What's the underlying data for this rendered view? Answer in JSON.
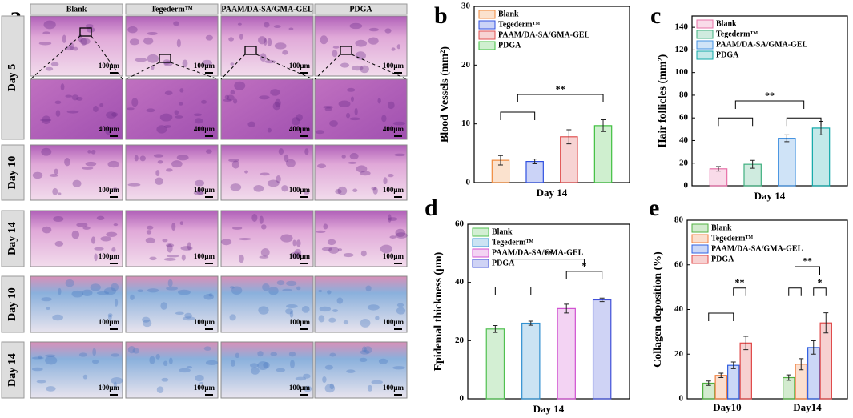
{
  "panel_a": {
    "panel": "a",
    "columns": [
      "Blank",
      "Tegederm™",
      "PAAM/DA-SA/GMA-GEL",
      "PDGA"
    ],
    "rows": [
      {
        "label": "Day 5",
        "scale": "100μm"
      },
      {
        "scale": "400μm"
      },
      {
        "label": "Day 10",
        "scale": "100μm"
      },
      {
        "label": "Day 14",
        "scale": "100μm"
      },
      {
        "label": "Day 10",
        "scale": "100μm"
      },
      {
        "label": "Day 14",
        "scale": "100μm"
      }
    ]
  },
  "chart_data": [
    {
      "type": "bar",
      "panel": "b",
      "y_label": "Blood Vessels (mm²)",
      "x_label": "Day 14",
      "categories": [
        null
      ],
      "ylim": [
        0,
        30
      ],
      "yticks": [
        0,
        10,
        20,
        30
      ],
      "legend": "top-left",
      "annotations": [
        "**"
      ],
      "series": [
        {
          "name": "Blank",
          "color": "#f08a3c",
          "values": [
            3.8
          ],
          "errors": [
            0.8
          ]
        },
        {
          "name": "Tegederm™",
          "color": "#3050e0",
          "values": [
            3.6
          ],
          "errors": [
            0.4
          ]
        },
        {
          "name": "PAAM/DA-SA/GMA-GEL",
          "color": "#e05050",
          "values": [
            7.8
          ],
          "errors": [
            1.2
          ]
        },
        {
          "name": "PDGA",
          "color": "#40c040",
          "values": [
            9.7
          ],
          "errors": [
            1.0
          ]
        }
      ]
    },
    {
      "type": "bar",
      "panel": "c",
      "y_label": "Hair follicles (mm²)",
      "x_label": "Day 14",
      "categories": [
        null
      ],
      "ylim": [
        0,
        150
      ],
      "yticks": [
        0,
        20,
        40,
        60,
        80,
        100,
        120,
        140
      ],
      "legend": "top-left",
      "annotations": [
        "**"
      ],
      "series": [
        {
          "name": "Blank",
          "color": "#e870a8",
          "values": [
            15
          ],
          "errors": [
            2
          ]
        },
        {
          "name": "Tegederm™",
          "color": "#40b080",
          "values": [
            19
          ],
          "errors": [
            3.5
          ]
        },
        {
          "name": "PAAM/DA-SA/GMA-GEL",
          "color": "#4090e0",
          "values": [
            42
          ],
          "errors": [
            3
          ]
        },
        {
          "name": "PDGA",
          "color": "#10a8a8",
          "values": [
            51
          ],
          "errors": [
            6
          ]
        }
      ]
    },
    {
      "type": "bar",
      "panel": "d",
      "y_label": "Epidemal thickness (μm)",
      "x_label": "Day 14",
      "categories": [
        null
      ],
      "ylim": [
        0,
        60
      ],
      "yticks": [
        0,
        20,
        40,
        60
      ],
      "legend": "top-left",
      "annotations": [
        "**",
        "*"
      ],
      "series": [
        {
          "name": "Blank",
          "color": "#50c050",
          "values": [
            24
          ],
          "errors": [
            1.2
          ]
        },
        {
          "name": "Tegederm™",
          "color": "#3090d0",
          "values": [
            26
          ],
          "errors": [
            0.7
          ]
        },
        {
          "name": "PAAM/DA-SA/GMA-GEL",
          "color": "#d050d0",
          "values": [
            31
          ],
          "errors": [
            1.5
          ]
        },
        {
          "name": "PDGA",
          "color": "#4050d8",
          "values": [
            34
          ],
          "errors": [
            0.6
          ]
        }
      ]
    },
    {
      "type": "bar",
      "panel": "e",
      "y_label": "Collagen deposition (%)",
      "categories": [
        "Day10",
        "Day14"
      ],
      "ylim": [
        0,
        80
      ],
      "yticks": [
        0,
        20,
        40,
        60,
        80
      ],
      "legend": "top-left",
      "annotations": [
        "**",
        "**",
        "*"
      ],
      "series": [
        {
          "name": "Blank",
          "color": "#50b040",
          "values": [
            7,
            9.5
          ],
          "errors": [
            1,
            1.2
          ]
        },
        {
          "name": "Tegederm™",
          "color": "#f08040",
          "values": [
            10.5,
            15.5
          ],
          "errors": [
            1,
            2.5
          ]
        },
        {
          "name": "PAAM/DA-SA/GMA-GEL",
          "color": "#3060e0",
          "values": [
            15,
            23
          ],
          "errors": [
            1.5,
            3
          ]
        },
        {
          "name": "PDGA",
          "color": "#e04848",
          "values": [
            25,
            34
          ],
          "errors": [
            3,
            4.5
          ]
        }
      ]
    }
  ]
}
